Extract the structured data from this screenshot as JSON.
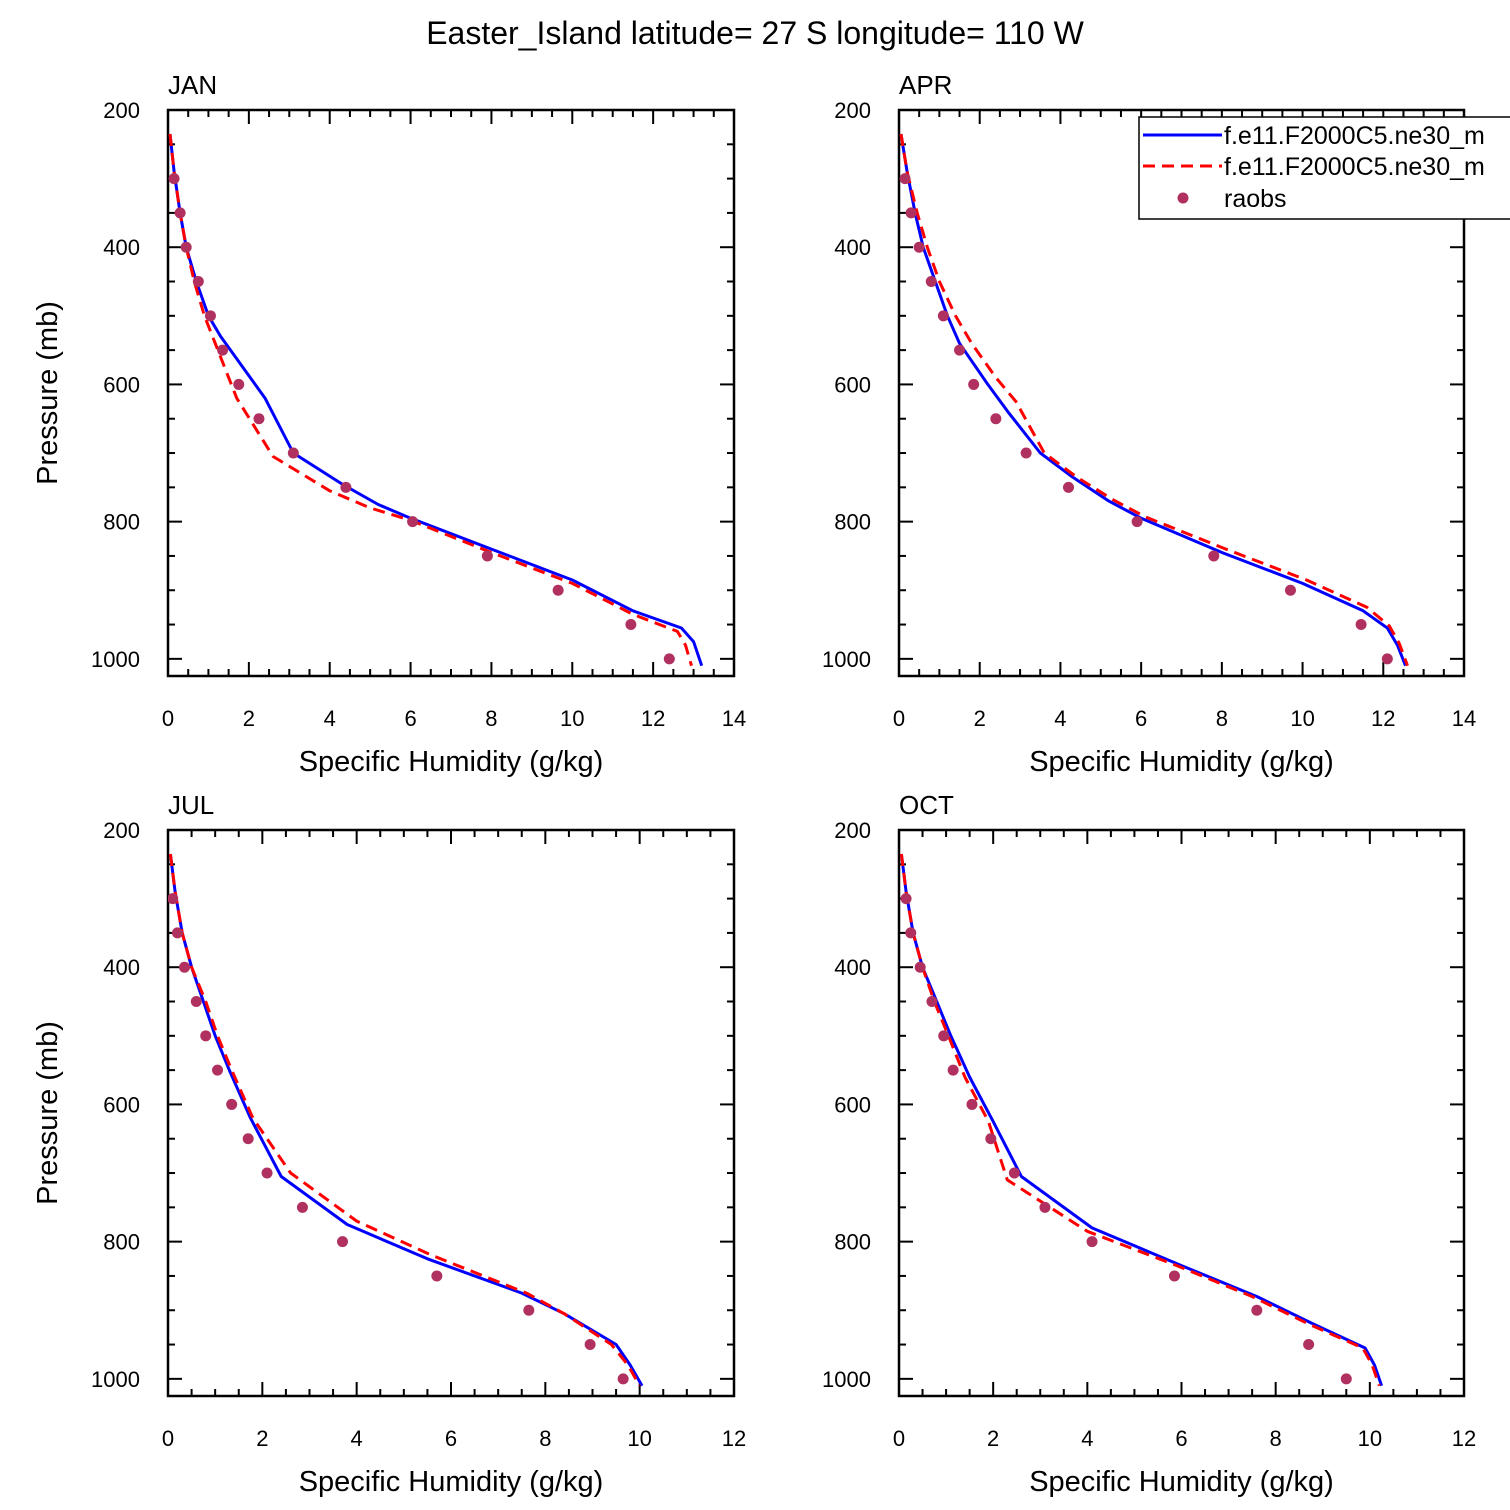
{
  "title": "Easter_Island  latitude= 27 S longitude= 110 W",
  "legend": {
    "entries": [
      {
        "label": "f.e11.F2000C5.ne30_m",
        "color": "#0000ff",
        "style": "solid"
      },
      {
        "label": "f.e11.F2000C5.ne30_m",
        "color": "#ff0000",
        "style": "dashed"
      },
      {
        "label": "raobs",
        "color": "#b03060",
        "style": "marker"
      }
    ]
  },
  "chart_data": [
    {
      "type": "line",
      "panel_label": "JAN",
      "xlabel": "Specific Humidity (g/kg)",
      "ylabel": "Pressure (mb)",
      "xlim": [
        0,
        14
      ],
      "ylim": [
        200,
        1025
      ],
      "y_inverted": true,
      "x_ticks": [
        "0",
        "2",
        "4",
        "6",
        "8",
        "10",
        "12",
        "14"
      ],
      "y_ticks": [
        "200",
        "400",
        "600",
        "800",
        "1000"
      ],
      "series": [
        {
          "kind": "line",
          "color": "#0000ff",
          "dash": "solid",
          "x": [
            0.05,
            0.15,
            0.3,
            0.45,
            0.7,
            1.0,
            1.3,
            2.4,
            3.1,
            4.3,
            5.2,
            6.0,
            8.0,
            10.0,
            11.5,
            12.7,
            13.0,
            13.2
          ],
          "y": [
            235,
            290,
            350,
            400,
            450,
            500,
            530,
            620,
            700,
            745,
            775,
            795,
            840,
            885,
            930,
            955,
            975,
            1010
          ]
        },
        {
          "kind": "line",
          "color": "#ff0000",
          "dash": "dashed",
          "x": [
            0.05,
            0.15,
            0.3,
            0.45,
            0.65,
            0.9,
            1.1,
            1.7,
            2.6,
            4.0,
            5.0,
            6.0,
            8.0,
            10.0,
            11.5,
            12.6,
            12.8,
            12.95
          ],
          "y": [
            235,
            290,
            350,
            400,
            450,
            500,
            530,
            620,
            705,
            755,
            780,
            798,
            845,
            890,
            935,
            960,
            980,
            1010
          ]
        },
        {
          "kind": "points",
          "color": "#b03060",
          "x": [
            0.15,
            0.3,
            0.45,
            0.75,
            1.05,
            1.35,
            1.75,
            2.25,
            3.1,
            4.4,
            6.05,
            7.9,
            9.65,
            11.45,
            12.4
          ],
          "y": [
            300,
            350,
            400,
            450,
            500,
            550,
            600,
            650,
            700,
            750,
            800,
            850,
            900,
            950,
            1000
          ]
        }
      ]
    },
    {
      "type": "line",
      "panel_label": "APR",
      "xlabel": "Specific Humidity (g/kg)",
      "ylabel": "Pressure (mb)",
      "xlim": [
        0,
        14
      ],
      "ylim": [
        200,
        1025
      ],
      "y_inverted": true,
      "x_ticks": [
        "0",
        "2",
        "4",
        "6",
        "8",
        "10",
        "12",
        "14"
      ],
      "y_ticks": [
        "200",
        "400",
        "600",
        "800",
        "1000"
      ],
      "series": [
        {
          "kind": "line",
          "color": "#0000ff",
          "dash": "solid",
          "x": [
            0.05,
            0.2,
            0.4,
            0.6,
            0.9,
            1.2,
            1.5,
            2.2,
            2.7,
            3.5,
            4.3,
            5.2,
            6.0,
            8.0,
            10.0,
            11.5,
            12.1,
            12.35,
            12.55
          ],
          "y": [
            235,
            290,
            350,
            400,
            450,
            500,
            540,
            600,
            640,
            700,
            735,
            770,
            795,
            845,
            890,
            930,
            955,
            980,
            1010
          ]
        },
        {
          "kind": "line",
          "color": "#ff0000",
          "dash": "dashed",
          "x": [
            0.05,
            0.2,
            0.45,
            0.7,
            1.0,
            1.4,
            1.8,
            2.4,
            2.9,
            3.6,
            4.4,
            5.3,
            6.1,
            8.1,
            10.1,
            11.6,
            12.15,
            12.4,
            12.6
          ],
          "y": [
            235,
            290,
            350,
            400,
            450,
            500,
            540,
            590,
            625,
            700,
            735,
            768,
            793,
            840,
            885,
            925,
            952,
            978,
            1010
          ]
        },
        {
          "kind": "points",
          "color": "#b03060",
          "x": [
            0.15,
            0.3,
            0.5,
            0.8,
            1.1,
            1.5,
            1.85,
            2.4,
            3.15,
            4.2,
            5.9,
            7.8,
            9.7,
            11.45,
            12.1
          ],
          "y": [
            300,
            350,
            400,
            450,
            500,
            550,
            600,
            650,
            700,
            750,
            800,
            850,
            900,
            950,
            1000
          ]
        }
      ]
    },
    {
      "type": "line",
      "panel_label": "JUL",
      "xlabel": "Specific Humidity (g/kg)",
      "ylabel": "Pressure (mb)",
      "xlim": [
        0,
        12
      ],
      "ylim": [
        200,
        1025
      ],
      "y_inverted": true,
      "x_ticks": [
        "0",
        "2",
        "4",
        "6",
        "8",
        "10",
        "12"
      ],
      "y_ticks": [
        "200",
        "400",
        "600",
        "800",
        "1000"
      ],
      "series": [
        {
          "kind": "line",
          "color": "#0000ff",
          "dash": "solid",
          "x": [
            0.05,
            0.15,
            0.3,
            0.5,
            0.75,
            1.0,
            1.3,
            1.75,
            2.4,
            3.8,
            5.5,
            7.5,
            8.4,
            9.5,
            9.8,
            10.05
          ],
          "y": [
            235,
            290,
            350,
            400,
            450,
            500,
            550,
            620,
            705,
            775,
            825,
            875,
            905,
            950,
            980,
            1010
          ]
        },
        {
          "kind": "line",
          "color": "#ff0000",
          "dash": "dashed",
          "x": [
            0.05,
            0.15,
            0.3,
            0.5,
            0.8,
            1.05,
            1.35,
            1.8,
            2.6,
            4.0,
            5.6,
            7.6,
            8.4,
            9.4,
            9.75,
            10.0
          ],
          "y": [
            235,
            290,
            350,
            400,
            450,
            500,
            550,
            620,
            700,
            770,
            820,
            875,
            905,
            950,
            980,
            1010
          ]
        },
        {
          "kind": "points",
          "color": "#b03060",
          "x": [
            0.1,
            0.2,
            0.35,
            0.6,
            0.8,
            1.05,
            1.35,
            1.7,
            2.1,
            2.85,
            3.7,
            5.7,
            7.65,
            8.95,
            9.65
          ],
          "y": [
            300,
            350,
            400,
            450,
            500,
            550,
            600,
            650,
            700,
            750,
            800,
            850,
            900,
            950,
            1000
          ]
        }
      ]
    },
    {
      "type": "line",
      "panel_label": "OCT",
      "xlabel": "Specific Humidity (g/kg)",
      "ylabel": "Pressure (mb)",
      "xlim": [
        0,
        12
      ],
      "ylim": [
        200,
        1025
      ],
      "y_inverted": true,
      "x_ticks": [
        "0",
        "2",
        "4",
        "6",
        "8",
        "10",
        "12"
      ],
      "y_ticks": [
        "200",
        "400",
        "600",
        "800",
        "1000"
      ],
      "series": [
        {
          "kind": "line",
          "color": "#0000ff",
          "dash": "solid",
          "x": [
            0.05,
            0.15,
            0.3,
            0.5,
            0.8,
            1.1,
            1.5,
            2.0,
            2.6,
            4.1,
            6.0,
            7.6,
            8.8,
            9.9,
            10.1,
            10.25
          ],
          "y": [
            235,
            290,
            350,
            400,
            450,
            500,
            560,
            625,
            705,
            780,
            835,
            880,
            920,
            955,
            980,
            1010
          ]
        },
        {
          "kind": "line",
          "color": "#ff0000",
          "dash": "dashed",
          "x": [
            0.05,
            0.15,
            0.3,
            0.5,
            0.75,
            1.05,
            1.4,
            1.9,
            2.3,
            4.0,
            5.9,
            7.5,
            8.7,
            9.85,
            10.05,
            10.2
          ],
          "y": [
            235,
            290,
            350,
            400,
            450,
            500,
            560,
            625,
            710,
            785,
            835,
            880,
            920,
            955,
            980,
            1010
          ]
        },
        {
          "kind": "points",
          "color": "#b03060",
          "x": [
            0.15,
            0.25,
            0.45,
            0.7,
            0.95,
            1.15,
            1.55,
            1.95,
            2.45,
            3.1,
            4.1,
            5.85,
            7.6,
            8.7,
            9.5
          ],
          "y": [
            300,
            350,
            400,
            450,
            500,
            550,
            600,
            650,
            700,
            750,
            800,
            850,
            900,
            950,
            1000
          ]
        }
      ]
    }
  ]
}
